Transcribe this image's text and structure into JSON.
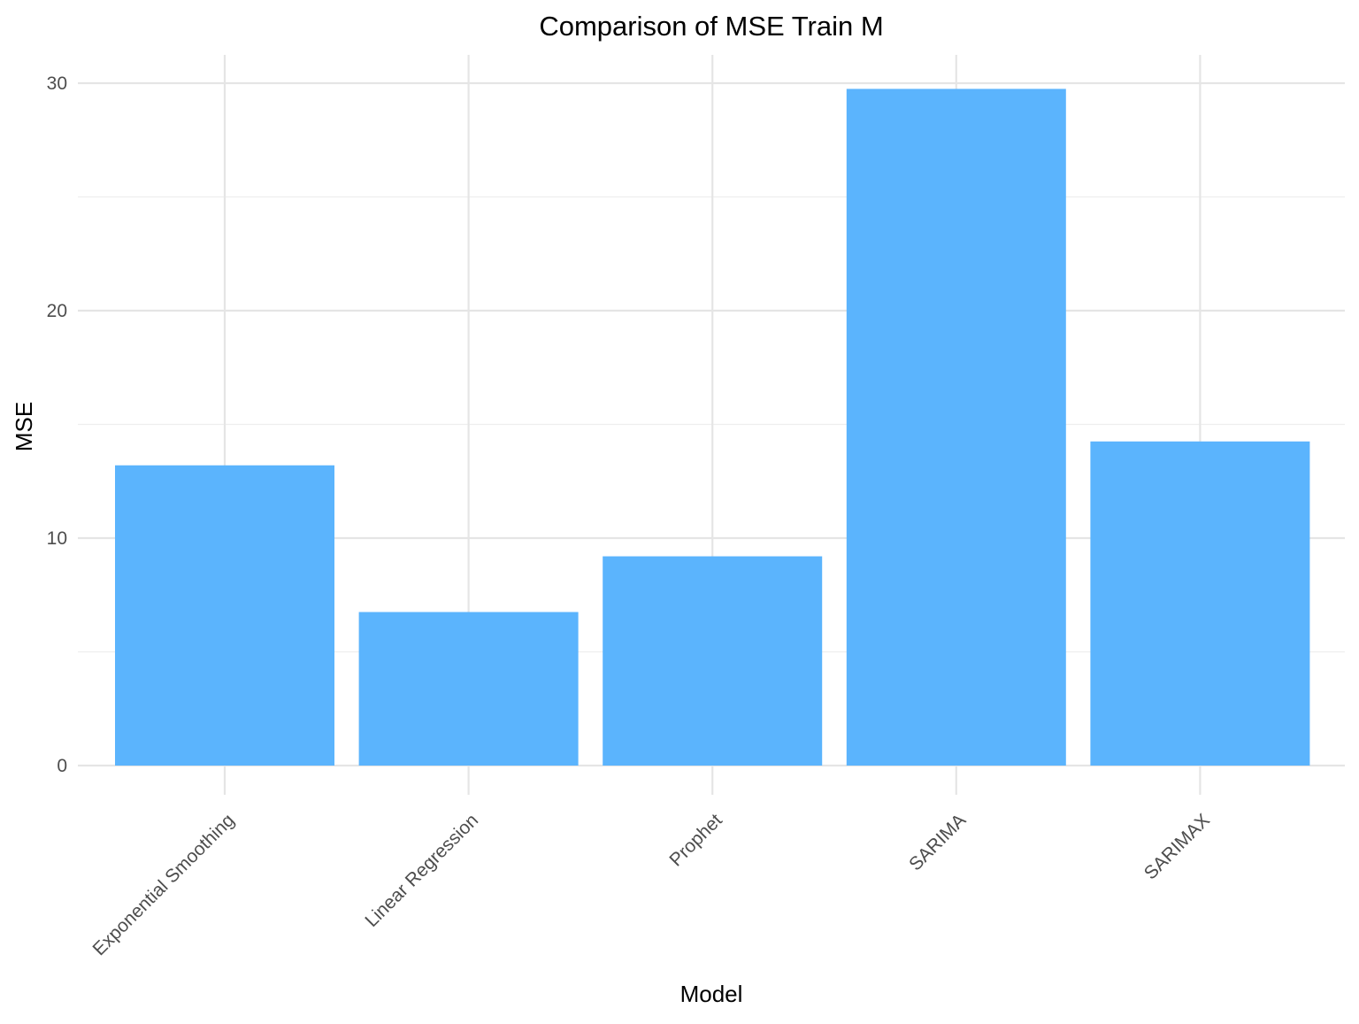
{
  "chart_data": {
    "type": "bar",
    "title": "Comparison of MSE Train M",
    "xlabel": "Model",
    "ylabel": "MSE",
    "categories": [
      "Exponential Smoothing",
      "Linear Regression",
      "Prophet",
      "SARIMA",
      "SARIMAX"
    ],
    "values": [
      13.2,
      6.75,
      9.2,
      29.75,
      14.25
    ],
    "ylim": [
      0,
      30
    ],
    "yticks": [
      "0",
      "10",
      "20",
      "30"
    ],
    "bar_color": "#5BB4FD",
    "grid": true,
    "legend": "none"
  }
}
